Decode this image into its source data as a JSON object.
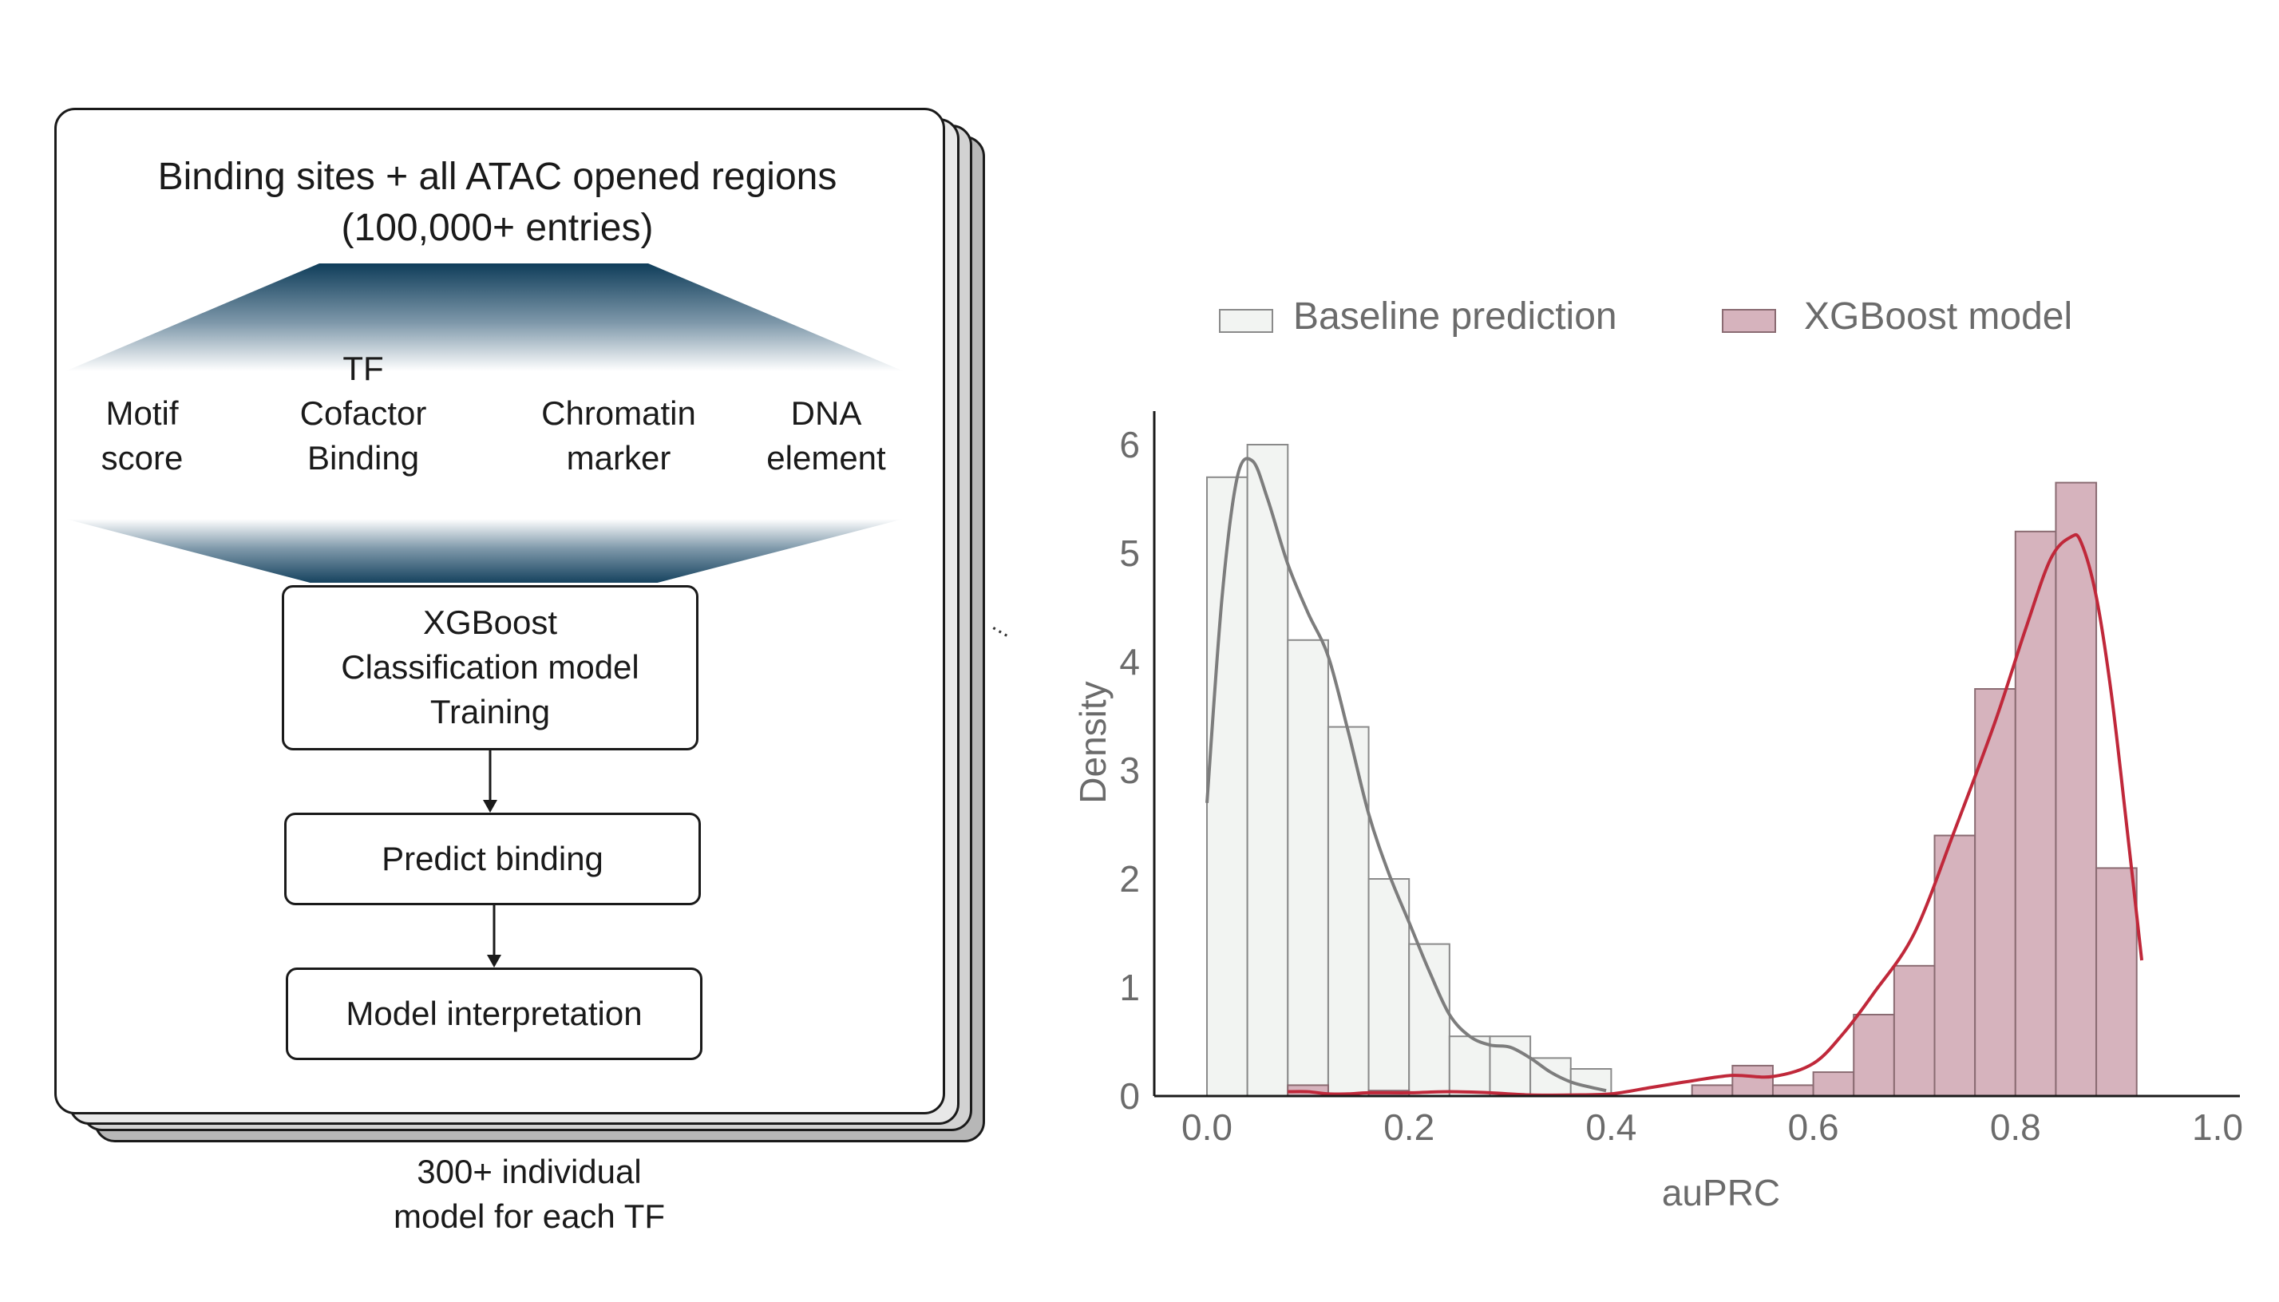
{
  "pipeline": {
    "title_line1": "Binding sites + all ATAC opened regions",
    "title_line2": "(100,000+ entries)",
    "features": [
      {
        "lines": [
          "Motif",
          "score"
        ]
      },
      {
        "lines": [
          "TF",
          "Cofactor",
          "Binding"
        ]
      },
      {
        "lines": [
          "Chromatin",
          "marker"
        ]
      },
      {
        "lines": [
          "DNA",
          "element"
        ]
      }
    ],
    "model_box": [
      "XGBoost",
      "Classification model",
      "Training"
    ],
    "predict_box": "Predict binding",
    "interpret_box": "Model interpretation",
    "footer_line1": "300+ individual",
    "footer_line2": "model for each TF",
    "ellipsis": "..."
  },
  "chart_data": {
    "type": "histogram",
    "xlabel": "auPRC",
    "ylabel": "Density",
    "xlim": [
      0.0,
      1.0
    ],
    "ylim": [
      0,
      6.2
    ],
    "x_ticks": [
      "0.0",
      "0.2",
      "0.4",
      "0.6",
      "0.8",
      "1.0"
    ],
    "y_ticks": [
      "0",
      "1",
      "2",
      "3",
      "4",
      "5",
      "6"
    ],
    "legend_position": "top",
    "bin_width": 0.04,
    "series": [
      {
        "name": "Baseline prediction",
        "color": "#f2f4f2",
        "edge_color": "#8a8a8a",
        "line_color": "#7d7d7d",
        "bins": [
          {
            "x0": 0.0,
            "density": 5.7
          },
          {
            "x0": 0.04,
            "density": 6.0
          },
          {
            "x0": 0.08,
            "density": 4.2
          },
          {
            "x0": 0.12,
            "density": 3.4
          },
          {
            "x0": 0.16,
            "density": 2.0
          },
          {
            "x0": 0.2,
            "density": 1.4
          },
          {
            "x0": 0.24,
            "density": 0.55
          },
          {
            "x0": 0.28,
            "density": 0.55
          },
          {
            "x0": 0.32,
            "density": 0.35
          },
          {
            "x0": 0.36,
            "density": 0.25
          }
        ],
        "kde": [
          [
            0.0,
            2.7
          ],
          [
            0.015,
            4.6
          ],
          [
            0.03,
            5.7
          ],
          [
            0.045,
            5.85
          ],
          [
            0.06,
            5.5
          ],
          [
            0.08,
            4.9
          ],
          [
            0.1,
            4.45
          ],
          [
            0.12,
            4.05
          ],
          [
            0.14,
            3.35
          ],
          [
            0.16,
            2.6
          ],
          [
            0.18,
            2.05
          ],
          [
            0.2,
            1.6
          ],
          [
            0.22,
            1.15
          ],
          [
            0.24,
            0.75
          ],
          [
            0.26,
            0.55
          ],
          [
            0.28,
            0.47
          ],
          [
            0.3,
            0.45
          ],
          [
            0.32,
            0.35
          ],
          [
            0.34,
            0.22
          ],
          [
            0.36,
            0.13
          ],
          [
            0.38,
            0.08
          ],
          [
            0.395,
            0.05
          ]
        ]
      },
      {
        "name": "XGBoost model",
        "color": "#d6b3bd",
        "edge_color": "#8a6b72",
        "line_color": "#c0283a",
        "bins": [
          {
            "x0": 0.08,
            "density": 0.1
          },
          {
            "x0": 0.16,
            "density": 0.05
          },
          {
            "x0": 0.48,
            "density": 0.1
          },
          {
            "x0": 0.52,
            "density": 0.28
          },
          {
            "x0": 0.56,
            "density": 0.1
          },
          {
            "x0": 0.6,
            "density": 0.22
          },
          {
            "x0": 0.64,
            "density": 0.75
          },
          {
            "x0": 0.68,
            "density": 1.2
          },
          {
            "x0": 0.72,
            "density": 2.4
          },
          {
            "x0": 0.76,
            "density": 3.75
          },
          {
            "x0": 0.8,
            "density": 5.2
          },
          {
            "x0": 0.84,
            "density": 5.65
          },
          {
            "x0": 0.88,
            "density": 2.1
          }
        ],
        "kde": [
          [
            0.08,
            0.04
          ],
          [
            0.1,
            0.04
          ],
          [
            0.12,
            0.02
          ],
          [
            0.14,
            0.02
          ],
          [
            0.16,
            0.03
          ],
          [
            0.2,
            0.03
          ],
          [
            0.24,
            0.04
          ],
          [
            0.28,
            0.03
          ],
          [
            0.32,
            0.01
          ],
          [
            0.36,
            0.01
          ],
          [
            0.4,
            0.02
          ],
          [
            0.44,
            0.08
          ],
          [
            0.48,
            0.14
          ],
          [
            0.52,
            0.19
          ],
          [
            0.56,
            0.18
          ],
          [
            0.6,
            0.3
          ],
          [
            0.63,
            0.58
          ],
          [
            0.66,
            0.95
          ],
          [
            0.7,
            1.5
          ],
          [
            0.74,
            2.45
          ],
          [
            0.78,
            3.45
          ],
          [
            0.81,
            4.3
          ],
          [
            0.835,
            4.95
          ],
          [
            0.855,
            5.15
          ],
          [
            0.865,
            5.1
          ],
          [
            0.88,
            4.6
          ],
          [
            0.895,
            3.7
          ],
          [
            0.91,
            2.5
          ],
          [
            0.925,
            1.25
          ]
        ]
      }
    ]
  }
}
